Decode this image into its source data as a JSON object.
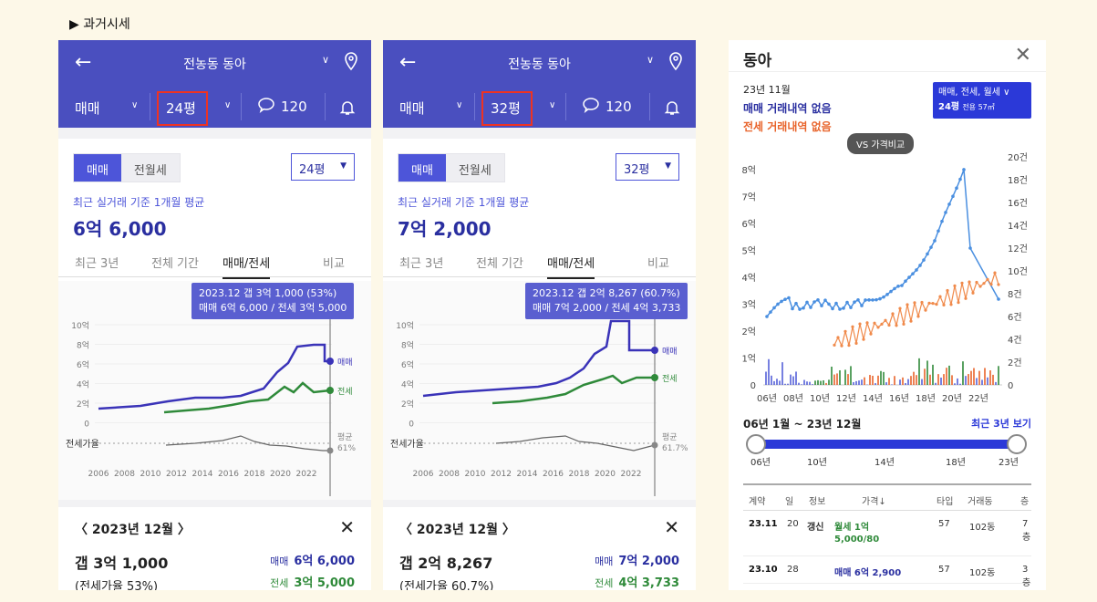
{
  "section_title": "▶ 과거시세",
  "panels": [
    {
      "complex": "전농동 동아",
      "trade": "매매",
      "size": "24평",
      "reviews": "120",
      "seg_on": "매매",
      "seg_off": "전월세",
      "size_select": "24평",
      "caption": "최근 실거래 기준 1개월 평균",
      "avg_price": "6억 6,000",
      "tabs": [
        "최근 3년",
        "전체 기간",
        "매매/전세",
        "비교"
      ],
      "tooltip_1": "2023.12 갭 3억 1,000 (53%)",
      "tooltip_2": "매매 6억 6,000 / 전세 3억 5,000",
      "y_labels": [
        "10억",
        "8억",
        "6억",
        "4억",
        "2억",
        "0"
      ],
      "x_labels": [
        "2006",
        "2008",
        "2010",
        "2012",
        "2014",
        "2016",
        "2018",
        "2020",
        "2022"
      ],
      "legend_sale": "매매",
      "legend_jeonse": "전세",
      "ratio_label": "전세가율",
      "ratio_avg": "평균",
      "ratio_val": "61%",
      "month": "2023년 12월",
      "gap": "갭 3억 1,000",
      "gap_ratio": "(전세가율 53%)",
      "sale_label": "매매",
      "sale_val": "6억 6,000",
      "jeonse_label": "전세",
      "jeonse_val": "3억 5,000"
    },
    {
      "complex": "전농동 동아",
      "trade": "매매",
      "size": "32평",
      "reviews": "120",
      "seg_on": "매매",
      "seg_off": "전월세",
      "size_select": "32평",
      "caption": "최근 실거래 기준 1개월 평균",
      "avg_price": "7억 2,000",
      "tabs": [
        "최근 3년",
        "전체 기간",
        "매매/전세",
        "비교"
      ],
      "tooltip_1": "2023.12 갭 2억 8,267 (60.7%)",
      "tooltip_2": "매매 7억 2,000 / 전세 4억 3,733",
      "y_labels": [
        "10억",
        "8억",
        "6억",
        "4억",
        "2억",
        "0"
      ],
      "x_labels": [
        "2006",
        "2008",
        "2010",
        "2012",
        "2014",
        "2016",
        "2018",
        "2020",
        "2022"
      ],
      "legend_sale": "매매",
      "legend_jeonse": "전세",
      "ratio_label": "전세가율",
      "ratio_avg": "평균",
      "ratio_val": "61.7%",
      "month": "2023년 12월",
      "gap": "갭 2억 8,267",
      "gap_ratio": "(전세가율 60.7%)",
      "sale_label": "매매",
      "sale_val": "7억 2,000",
      "jeonse_label": "전세",
      "jeonse_val": "4억 3,733"
    }
  ],
  "detail": {
    "title": "동아",
    "date": "23년 11월",
    "no_sale": "매매 거래내역 없음",
    "no_jeonse": "전세 거래내역 없음",
    "filter_1": "매매, 전세, 월세 ∨",
    "filter_2": "24평",
    "filter_3": "전용 57㎡",
    "vs": "VS 가격비교",
    "y_left": [
      "8억",
      "7억",
      "6억",
      "5억",
      "4억",
      "3억",
      "2억",
      "1억",
      "0"
    ],
    "y_right": [
      "20건",
      "18건",
      "16건",
      "14건",
      "12건",
      "10건",
      "8건",
      "6건",
      "4건",
      "2건",
      "0"
    ],
    "x_labels": [
      "06년",
      "08년",
      "10년",
      "12년",
      "14년",
      "16년",
      "18년",
      "20년",
      "22년"
    ],
    "range": "06년 1월 ~ 23년 12월",
    "recent": "최근 3년 보기",
    "slider_ticks": [
      "06년",
      "10년",
      "14년",
      "18년",
      "23년"
    ],
    "table_headers": [
      "계약",
      "일",
      "정보",
      "가격↓",
      "타입",
      "거래동",
      "층"
    ],
    "rows": [
      {
        "ym": "23.11",
        "day": "20",
        "info": "갱신",
        "price1": "월세 1억",
        "price2": "5,000/80",
        "type": "57",
        "dong": "102동",
        "floor": "7층"
      },
      {
        "ym": "23.10",
        "day": "28",
        "info": "",
        "price1": "매매 6억 2,900",
        "price2": "",
        "type": "57",
        "dong": "102동",
        "floor": "3층"
      }
    ]
  },
  "colors": {
    "header": "#4a4fbf",
    "sale": "#3a33b8",
    "jeonse": "#2f8a3a",
    "accent": "#4d55d9"
  }
}
